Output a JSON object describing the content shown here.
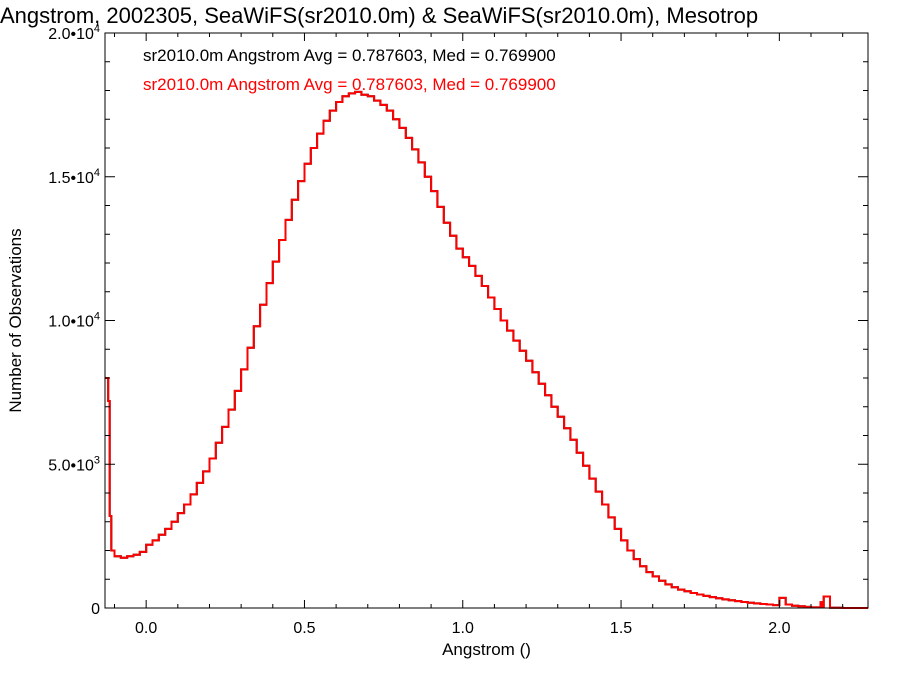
{
  "chart_data": {
    "type": "line",
    "title": "Angstrom, 2002305, SeaWiFS(sr2010.0m) & SeaWiFS(sr2010.0m), Mesotrop",
    "xlabel": "Angstrom ()",
    "ylabel": "Number of Observations",
    "xlim": [
      -0.13,
      2.28
    ],
    "ylim": [
      0,
      20000
    ],
    "x_ticks": [
      0.0,
      0.5,
      1.0,
      1.5,
      2.0
    ],
    "x_tick_labels": [
      "0.0",
      "0.5",
      "1.0",
      "1.5",
      "2.0"
    ],
    "y_ticks": [
      0,
      5000,
      10000,
      15000,
      20000
    ],
    "y_tick_labels": [
      {
        "mantissa": "0",
        "exponent": ""
      },
      {
        "mantissa": "5.0•10",
        "exponent": "3"
      },
      {
        "mantissa": "1.0•10",
        "exponent": "4"
      },
      {
        "mantissa": "1.5•10",
        "exponent": "4"
      },
      {
        "mantissa": "2.0•10",
        "exponent": "4"
      }
    ],
    "annotations": [
      {
        "text": "sr2010.0m Angstrom Avg = 0.787603, Med = 0.769900",
        "color": "#000000"
      },
      {
        "text": "sr2010.0m Angstrom Avg = 0.787603, Med = 0.769900",
        "color": "#ff0000"
      }
    ],
    "series": [
      {
        "color": "#000000",
        "style": "step",
        "x": [
          -0.13,
          -0.12,
          -0.115,
          -0.11,
          -0.1,
          -0.08,
          -0.06,
          -0.04,
          -0.02,
          0.0,
          0.02,
          0.04,
          0.06,
          0.08,
          0.1,
          0.12,
          0.14,
          0.16,
          0.18,
          0.2,
          0.22,
          0.24,
          0.26,
          0.28,
          0.3,
          0.32,
          0.34,
          0.36,
          0.38,
          0.4,
          0.42,
          0.44,
          0.46,
          0.48,
          0.5,
          0.52,
          0.54,
          0.56,
          0.58,
          0.6,
          0.62,
          0.64,
          0.66,
          0.68,
          0.7,
          0.72,
          0.74,
          0.76,
          0.78,
          0.8,
          0.82,
          0.84,
          0.86,
          0.88,
          0.9,
          0.92,
          0.94,
          0.96,
          0.98,
          1.0,
          1.02,
          1.04,
          1.06,
          1.08,
          1.1,
          1.12,
          1.14,
          1.16,
          1.18,
          1.2,
          1.22,
          1.24,
          1.26,
          1.28,
          1.3,
          1.32,
          1.34,
          1.36,
          1.38,
          1.4,
          1.42,
          1.44,
          1.46,
          1.48,
          1.5,
          1.52,
          1.54,
          1.56,
          1.58,
          1.6,
          1.62,
          1.64,
          1.66,
          1.68,
          1.7,
          1.72,
          1.74,
          1.76,
          1.78,
          1.8,
          1.82,
          1.84,
          1.86,
          1.88,
          1.9,
          1.92,
          1.94,
          1.96,
          1.98,
          2.0,
          2.02,
          2.04,
          2.06,
          2.08,
          2.1,
          2.12,
          2.13,
          2.135,
          2.14,
          2.16,
          2.2,
          2.24,
          2.28
        ],
        "y": [
          8000,
          7200,
          3200,
          2000,
          1800,
          1750,
          1800,
          1850,
          1950,
          2200,
          2350,
          2550,
          2750,
          3000,
          3300,
          3600,
          3950,
          4350,
          4750,
          5200,
          5750,
          6300,
          6900,
          7550,
          8300,
          9050,
          9800,
          10550,
          11300,
          12050,
          12800,
          13500,
          14200,
          14850,
          15450,
          16000,
          16500,
          16950,
          17300,
          17600,
          17800,
          17900,
          17950,
          17850,
          17800,
          17650,
          17500,
          17300,
          17000,
          16700,
          16350,
          15950,
          15500,
          15000,
          14500,
          13950,
          13400,
          12950,
          12500,
          12200,
          11900,
          11550,
          11200,
          10800,
          10400,
          10000,
          9650,
          9300,
          8950,
          8600,
          8200,
          7800,
          7400,
          7000,
          6650,
          6250,
          5850,
          5400,
          4950,
          4500,
          4050,
          3600,
          3150,
          2750,
          2350,
          2000,
          1700,
          1450,
          1250,
          1100,
          950,
          820,
          720,
          640,
          580,
          520,
          470,
          420,
          380,
          340,
          300,
          270,
          240,
          210,
          180,
          160,
          140,
          120,
          100,
          350,
          120,
          80,
          60,
          40,
          20,
          20,
          200,
          20,
          400,
          10,
          0,
          0,
          0
        ]
      },
      {
        "color": "#ff0000",
        "style": "step",
        "x": [
          -0.13,
          -0.12,
          -0.115,
          -0.11,
          -0.1,
          -0.08,
          -0.06,
          -0.04,
          -0.02,
          0.0,
          0.02,
          0.04,
          0.06,
          0.08,
          0.1,
          0.12,
          0.14,
          0.16,
          0.18,
          0.2,
          0.22,
          0.24,
          0.26,
          0.28,
          0.3,
          0.32,
          0.34,
          0.36,
          0.38,
          0.4,
          0.42,
          0.44,
          0.46,
          0.48,
          0.5,
          0.52,
          0.54,
          0.56,
          0.58,
          0.6,
          0.62,
          0.64,
          0.66,
          0.68,
          0.7,
          0.72,
          0.74,
          0.76,
          0.78,
          0.8,
          0.82,
          0.84,
          0.86,
          0.88,
          0.9,
          0.92,
          0.94,
          0.96,
          0.98,
          1.0,
          1.02,
          1.04,
          1.06,
          1.08,
          1.1,
          1.12,
          1.14,
          1.16,
          1.18,
          1.2,
          1.22,
          1.24,
          1.26,
          1.28,
          1.3,
          1.32,
          1.34,
          1.36,
          1.38,
          1.4,
          1.42,
          1.44,
          1.46,
          1.48,
          1.5,
          1.52,
          1.54,
          1.56,
          1.58,
          1.6,
          1.62,
          1.64,
          1.66,
          1.68,
          1.7,
          1.72,
          1.74,
          1.76,
          1.78,
          1.8,
          1.82,
          1.84,
          1.86,
          1.88,
          1.9,
          1.92,
          1.94,
          1.96,
          1.98,
          2.0,
          2.02,
          2.04,
          2.06,
          2.08,
          2.1,
          2.12,
          2.13,
          2.135,
          2.14,
          2.16,
          2.2,
          2.24,
          2.28
        ],
        "y": [
          8000,
          7200,
          3200,
          2000,
          1800,
          1750,
          1800,
          1850,
          1950,
          2200,
          2350,
          2550,
          2750,
          3000,
          3300,
          3600,
          3950,
          4350,
          4750,
          5200,
          5750,
          6300,
          6900,
          7550,
          8300,
          9050,
          9800,
          10550,
          11300,
          12050,
          12800,
          13500,
          14200,
          14850,
          15450,
          16000,
          16500,
          16950,
          17300,
          17600,
          17800,
          17900,
          17950,
          17850,
          17800,
          17650,
          17500,
          17300,
          17000,
          16700,
          16350,
          15950,
          15500,
          15000,
          14500,
          13950,
          13400,
          12950,
          12500,
          12200,
          11900,
          11550,
          11200,
          10800,
          10400,
          10000,
          9650,
          9300,
          8950,
          8600,
          8200,
          7800,
          7400,
          7000,
          6650,
          6250,
          5850,
          5400,
          4950,
          4500,
          4050,
          3600,
          3150,
          2750,
          2350,
          2000,
          1700,
          1450,
          1250,
          1100,
          950,
          820,
          720,
          640,
          580,
          520,
          470,
          420,
          380,
          340,
          300,
          270,
          240,
          210,
          180,
          160,
          140,
          120,
          100,
          350,
          120,
          80,
          60,
          40,
          20,
          20,
          200,
          20,
          400,
          10,
          0,
          0,
          0
        ]
      }
    ]
  }
}
